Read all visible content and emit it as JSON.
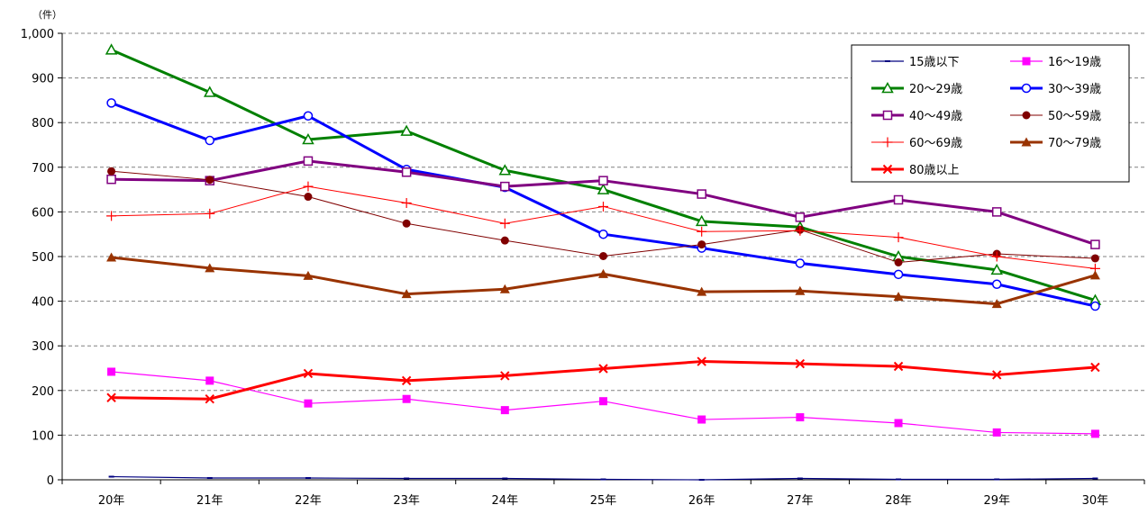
{
  "chart_data": {
    "type": "line",
    "unit_label": "（件）",
    "categories": [
      "20年",
      "21年",
      "22年",
      "23年",
      "24年",
      "25年",
      "26年",
      "27年",
      "28年",
      "29年",
      "30年"
    ],
    "ylim": [
      0,
      1000
    ],
    "yticks": [
      0,
      100,
      200,
      300,
      400,
      500,
      600,
      700,
      800,
      900,
      1000
    ],
    "ytick_labels": [
      "0",
      "100",
      "200",
      "300",
      "400",
      "500",
      "600",
      "700",
      "800",
      "900",
      "1,000"
    ],
    "grid": "horizontal dashed",
    "legend_position": "top-right",
    "series": [
      {
        "name": "15歳以下",
        "color": "#000080",
        "marker": "dash",
        "width": 1.2,
        "values": [
          7,
          4,
          4,
          3,
          3,
          1,
          0,
          3,
          1,
          1,
          3
        ]
      },
      {
        "name": "16～19歳",
        "color": "#ff00ff",
        "marker": "square",
        "width": 1.2,
        "values": [
          242,
          222,
          171,
          181,
          156,
          176,
          135,
          140,
          127,
          106,
          103
        ]
      },
      {
        "name": "20～29歳",
        "color": "#008000",
        "marker": "triangle-open",
        "width": 3,
        "values": [
          963,
          868,
          762,
          781,
          693,
          650,
          579,
          566,
          500,
          470,
          402
        ]
      },
      {
        "name": "30～39歳",
        "color": "#0000ff",
        "marker": "circle-open",
        "width": 3,
        "values": [
          844,
          760,
          815,
          695,
          655,
          550,
          519,
          485,
          460,
          438,
          389
        ]
      },
      {
        "name": "40～49歳",
        "color": "#800080",
        "marker": "square-open",
        "width": 3,
        "values": [
          673,
          670,
          714,
          689,
          657,
          670,
          640,
          588,
          627,
          600,
          527
        ]
      },
      {
        "name": "50～59歳",
        "color": "#800000",
        "marker": "circle",
        "width": 1,
        "values": [
          691,
          672,
          634,
          574,
          536,
          501,
          527,
          560,
          487,
          506,
          496
        ]
      },
      {
        "name": "60～69歳",
        "color": "#ff0000",
        "marker": "plus",
        "width": 1,
        "values": [
          591,
          596,
          657,
          620,
          574,
          612,
          556,
          558,
          543,
          500,
          473
        ]
      },
      {
        "name": "70～79歳",
        "color": "#993300",
        "marker": "triangle",
        "width": 3,
        "values": [
          498,
          474,
          457,
          416,
          427,
          461,
          421,
          423,
          410,
          394,
          458
        ]
      },
      {
        "name": "80歳以上",
        "color": "#ff0000",
        "marker": "x",
        "width": 3,
        "values": [
          184,
          181,
          238,
          222,
          233,
          249,
          265,
          260,
          254,
          235,
          252
        ]
      }
    ]
  }
}
